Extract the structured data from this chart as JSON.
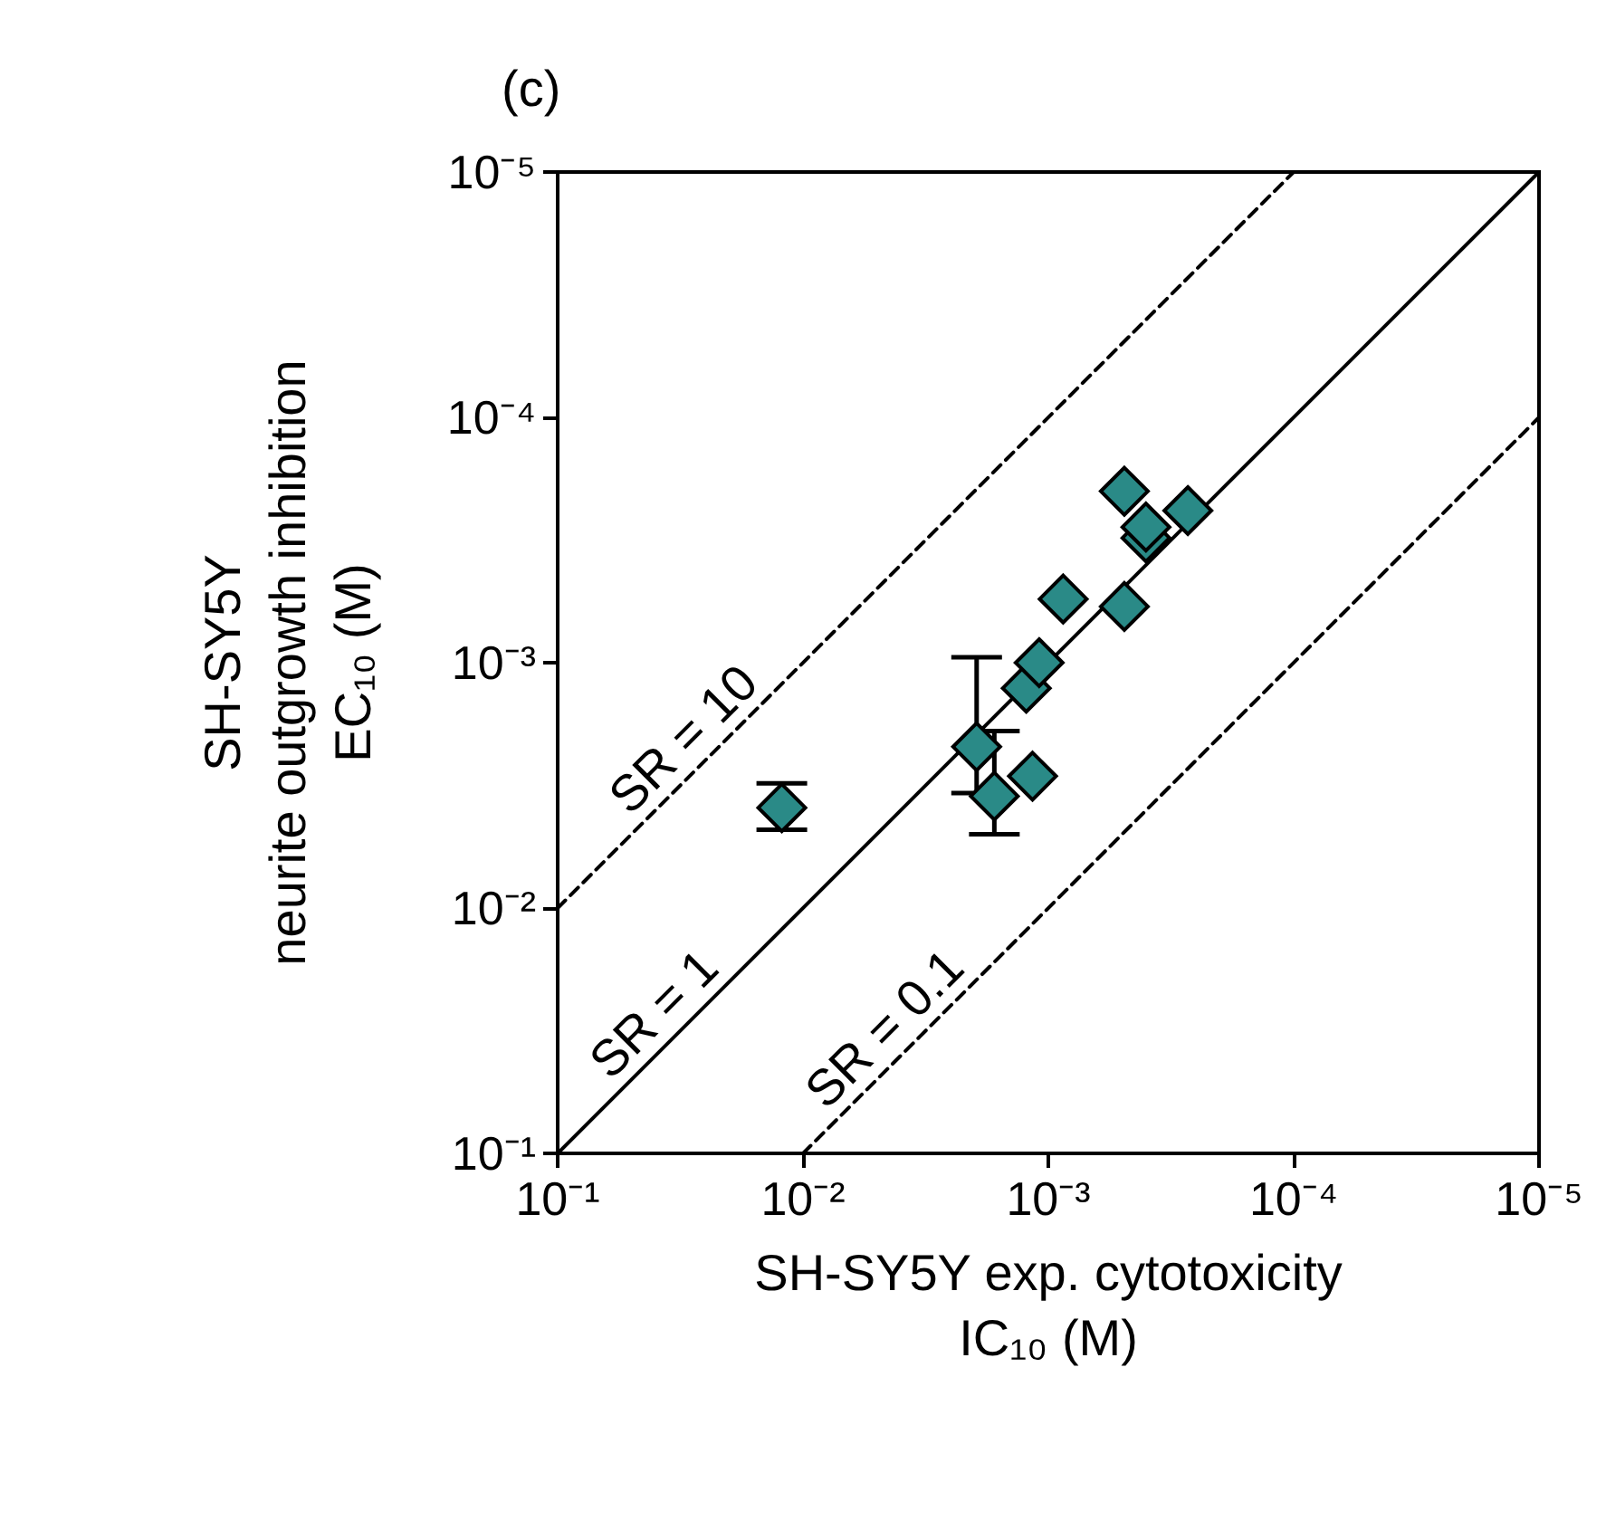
{
  "chart_data": {
    "type": "scatter",
    "title": "(c)",
    "xlabel": "SH-SY5Y exp. cytotoxicity\nIC₁₀ (M)",
    "ylabel": "SH-SY5Y\nneurite outgrowth inhibition\nEC₁₀ (M)",
    "log": "xy",
    "grid": false,
    "legend": false,
    "xlim": [
      0.1,
      1e-05
    ],
    "ylim": [
      0.1,
      1e-05
    ],
    "xticks": [
      {
        "value": 0.1,
        "label": "10⁻¹"
      },
      {
        "value": 0.01,
        "label": "10⁻²"
      },
      {
        "value": 0.001,
        "label": "10⁻³"
      },
      {
        "value": 0.0001,
        "label": "10⁻⁴"
      },
      {
        "value": 1e-05,
        "label": "10⁻⁵"
      }
    ],
    "yticks": [
      {
        "value": 0.1,
        "label": "10⁻¹"
      },
      {
        "value": 0.01,
        "label": "10⁻²"
      },
      {
        "value": 0.001,
        "label": "10⁻³"
      },
      {
        "value": 0.0001,
        "label": "10⁻⁴"
      },
      {
        "value": 1e-05,
        "label": "10⁻⁵"
      }
    ],
    "series": [
      {
        "type": "line",
        "name": "SR = 10",
        "color": "#000000",
        "line_style": "dashed",
        "marker": "none",
        "x": [
          0.1,
          0.0001
        ],
        "values": [
          0.01,
          1e-05
        ]
      },
      {
        "type": "line",
        "name": "SR = 1",
        "color": "#000000",
        "line_style": "solid",
        "marker": "none",
        "x": [
          0.1,
          1e-05
        ],
        "values": [
          0.1,
          1e-05
        ]
      },
      {
        "type": "line",
        "name": "SR = 0.1",
        "color": "#000000",
        "line_style": "dashed",
        "marker": "none",
        "x": [
          0.01,
          1e-05
        ],
        "values": [
          0.1,
          0.0001
        ]
      },
      {
        "color": "#2a8a87",
        "marker": "diamond",
        "x": [
          0.0122,
          0.00196,
          0.00166,
          0.00116,
          0.00123,
          0.00109,
          0.00087,
          0.00049,
          0.00049,
          0.0004,
          0.0004,
          0.00027
        ],
        "values": [
          0.0039,
          0.0022,
          0.0035,
          0.0029,
          0.00127,
          0.001,
          0.00055,
          0.00059,
          0.0002,
          0.00031,
          0.00028,
          0.00024
        ],
        "errors": [
          [
            0.0031,
            0.0048
          ],
          [
            0.00095,
            0.0034
          ],
          [
            0.0019,
            0.005
          ],
          null,
          null,
          null,
          null,
          null,
          null,
          null,
          null,
          null
        ]
      }
    ]
  }
}
